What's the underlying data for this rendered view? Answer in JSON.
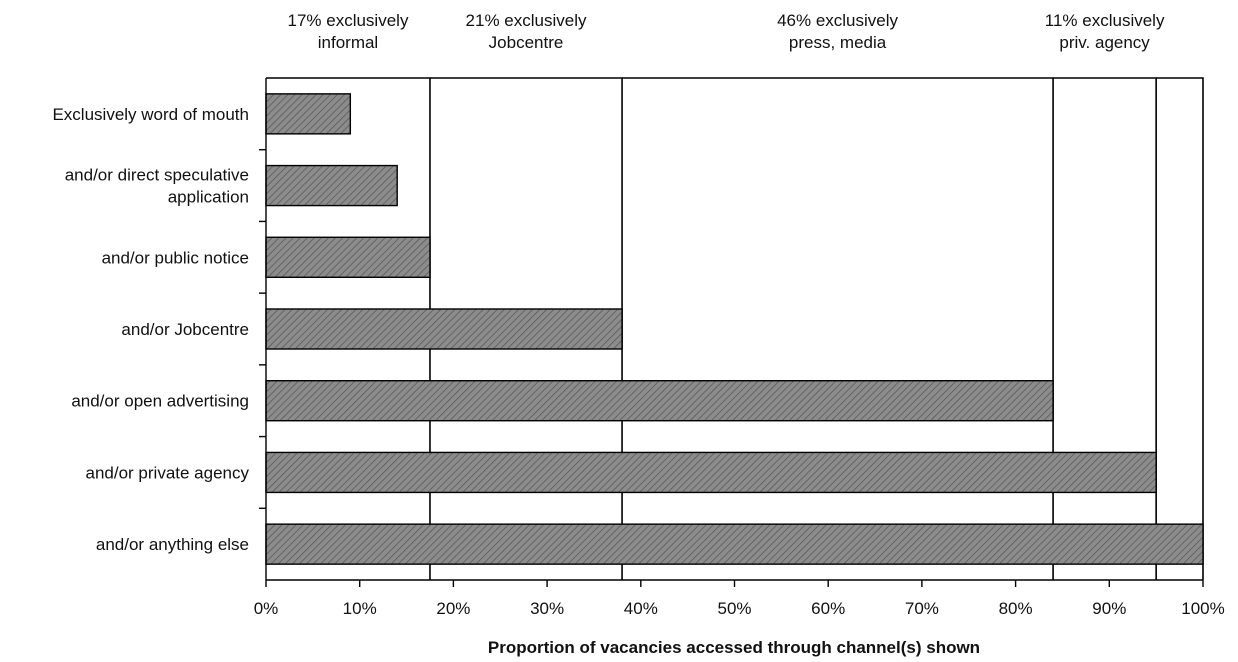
{
  "chart_data": {
    "type": "bar",
    "orientation": "horizontal",
    "categories": [
      "Exclusively word of mouth",
      "and/or direct speculative application",
      "and/or public notice",
      "and/or Jobcentre",
      "and/or open advertising",
      "and/or private agency",
      "and/or anything else"
    ],
    "category_lines": [
      [
        "Exclusively word of mouth"
      ],
      [
        "and/or direct speculative",
        "application"
      ],
      [
        "and/or public notice"
      ],
      [
        "and/or Jobcentre"
      ],
      [
        "and/or open advertising"
      ],
      [
        "and/or private agency"
      ],
      [
        "and/or anything else"
      ]
    ],
    "values": [
      9,
      14,
      17.5,
      38,
      84,
      95,
      100
    ],
    "xlim": [
      0,
      100
    ],
    "xticks": [
      "0%",
      "10%",
      "20%",
      "30%",
      "40%",
      "50%",
      "60%",
      "70%",
      "80%",
      "90%",
      "100%"
    ],
    "xlabel": "Proportion of vacancies accessed through channel(s) shown",
    "grid": false,
    "bar_fill": "#8c8c8c",
    "bracket_boundaries": [
      17.5,
      38,
      84,
      95,
      100
    ],
    "annotations": [
      {
        "lines": [
          "17% exclusively",
          "informal"
        ],
        "at": 17.5
      },
      {
        "lines": [
          "21% exclusively",
          "Jobcentre"
        ],
        "at": 38
      },
      {
        "lines": [
          "46% exclusively",
          "press, media"
        ],
        "at": 84
      },
      {
        "lines": [
          "11% exclusively",
          "priv. agency"
        ],
        "at": 95
      }
    ]
  }
}
